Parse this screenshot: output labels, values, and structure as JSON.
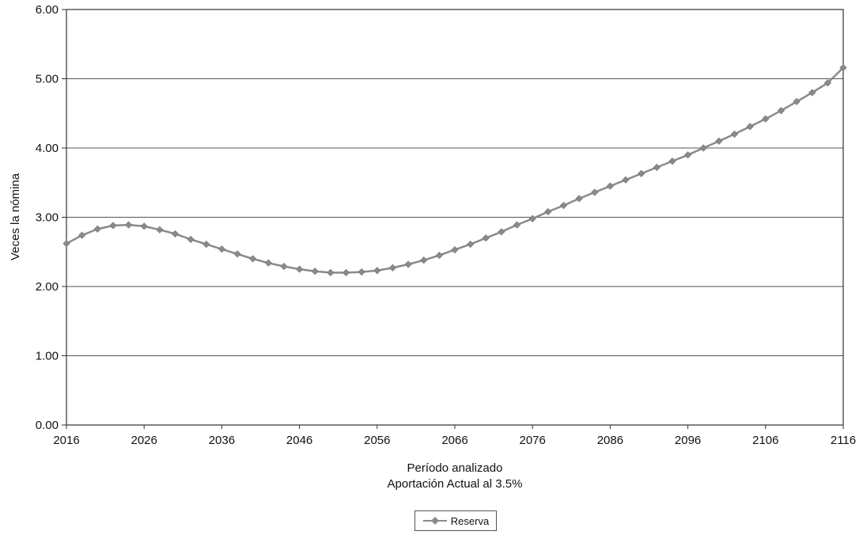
{
  "chart_data": {
    "type": "line",
    "xlabel": "Período analizado",
    "subtitle": "Aportación Actual al 3.5%",
    "ylabel": "Veces la nómina",
    "xlim": [
      2016,
      2116
    ],
    "ylim": [
      0,
      6
    ],
    "x_ticks": [
      "2016",
      "2026",
      "2036",
      "2046",
      "2056",
      "2066",
      "2076",
      "2086",
      "2096",
      "2106",
      "2116"
    ],
    "y_ticks": [
      "0.00",
      "1.00",
      "2.00",
      "3.00",
      "4.00",
      "5.00",
      "6.00"
    ],
    "grid": "horizontal",
    "legend_position": "bottom",
    "colors": {
      "series": "#8a8a8a",
      "grid": "#555555",
      "axis": "#333333"
    },
    "series": [
      {
        "name": "Reserva",
        "marker": "diamond",
        "x": [
          2016,
          2018,
          2020,
          2022,
          2024,
          2026,
          2028,
          2030,
          2032,
          2034,
          2036,
          2038,
          2040,
          2042,
          2044,
          2046,
          2048,
          2050,
          2052,
          2054,
          2056,
          2058,
          2060,
          2062,
          2064,
          2066,
          2068,
          2070,
          2072,
          2074,
          2076,
          2078,
          2080,
          2082,
          2084,
          2086,
          2088,
          2090,
          2092,
          2094,
          2096,
          2098,
          2100,
          2102,
          2104,
          2106,
          2108,
          2110,
          2112,
          2114,
          2116
        ],
        "values": [
          2.62,
          2.74,
          2.83,
          2.88,
          2.89,
          2.87,
          2.82,
          2.76,
          2.68,
          2.61,
          2.54,
          2.47,
          2.4,
          2.34,
          2.29,
          2.25,
          2.22,
          2.2,
          2.2,
          2.21,
          2.23,
          2.27,
          2.32,
          2.38,
          2.45,
          2.53,
          2.61,
          2.7,
          2.79,
          2.89,
          2.98,
          3.08,
          3.17,
          3.27,
          3.36,
          3.45,
          3.54,
          3.63,
          3.72,
          3.81,
          3.9,
          4.0,
          4.1,
          4.2,
          4.31,
          4.42,
          4.54,
          4.67,
          4.8,
          4.94,
          5.16
        ]
      }
    ]
  }
}
